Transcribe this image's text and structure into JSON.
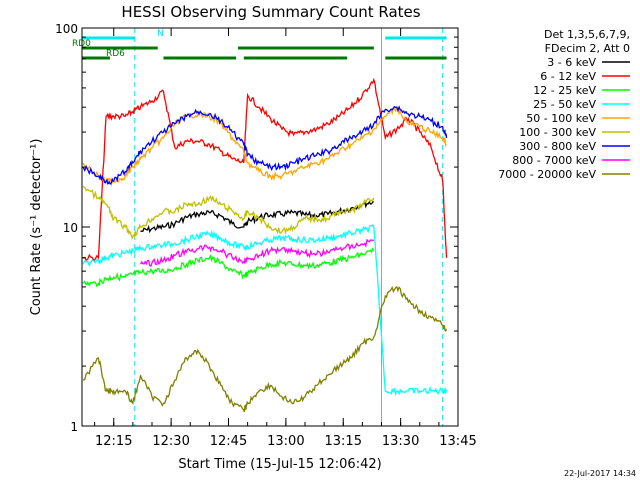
{
  "chart_data": {
    "type": "line",
    "title": "HESSI Observing Summary Count Rates",
    "xlabel": "Start Time (15-Jul-15 12:06:42)",
    "ylabel": "Count Rate (s⁻¹ detector⁻¹)",
    "y_scale": "log",
    "ylim": [
      1,
      100
    ],
    "xlim": [
      "12:06:42",
      "13:45"
    ],
    "x_ticks": [
      "12:15",
      "12:30",
      "12:45",
      "13:00",
      "13:15",
      "13:30",
      "13:45"
    ],
    "y_ticks": [
      "1",
      "10",
      "100"
    ],
    "footer_date": "22-Jul-2017 14:34",
    "legend": {
      "header1": "Det 1,3,5,6,7,9,",
      "header2": "FDecim 2, Att 0"
    },
    "flags": [
      {
        "label": "N",
        "color": "#00e5ee",
        "segments": [
          [
            "12:06:42",
            "12:20:30"
          ],
          [
            "13:26:00",
            "13:42:00"
          ]
        ]
      },
      {
        "label": "RD0",
        "color": "#007800",
        "segments": [
          [
            "12:06:42",
            "12:26:30"
          ],
          [
            "12:47:30",
            "13:23:00"
          ]
        ]
      },
      {
        "label": "RD6",
        "color": "#007800",
        "segments": [
          [
            "12:06:42",
            "12:14:00"
          ],
          [
            "12:28:00",
            "12:47:00"
          ],
          [
            "12:49:00",
            "13:16:00"
          ],
          [
            "13:26:00",
            "13:42:00"
          ]
        ]
      }
    ],
    "vlines": [
      {
        "t": "12:20:30",
        "style": "dashed",
        "color": "#00e5ee"
      },
      {
        "t": "13:41:00",
        "style": "dashed",
        "color": "#00e5ee"
      },
      {
        "t": "12:06:42",
        "style": "solid",
        "color": "#00e5ee"
      },
      {
        "t": "13:25:00",
        "style": "solid",
        "color": "#00e5ee"
      }
    ],
    "times": [
      "12:07",
      "12:11",
      "12:13",
      "12:15",
      "12:18",
      "12:20",
      "12:22",
      "12:25",
      "12:28",
      "12:31",
      "12:34",
      "12:37",
      "12:40",
      "12:43",
      "12:46",
      "12:49",
      "12:50",
      "12:53",
      "12:56",
      "12:59",
      "13:02",
      "13:05",
      "13:08",
      "13:11",
      "13:14",
      "13:17",
      "13:20",
      "13:23",
      "13:26",
      "13:29",
      "13:32",
      "13:35",
      "13:38",
      "13:41",
      "13:42"
    ],
    "series": [
      {
        "name": "3 - 6 keV",
        "color": "#000000",
        "values": [
          null,
          null,
          null,
          null,
          null,
          null,
          9.5,
          9.8,
          10.0,
          10.4,
          11.2,
          11.6,
          11.8,
          11.4,
          10.4,
          10.0,
          10.6,
          11.2,
          11.5,
          11.6,
          11.8,
          11.5,
          11.4,
          11.6,
          12.0,
          12.4,
          13.0,
          13.4,
          null,
          null,
          null,
          null,
          null,
          null,
          null
        ]
      },
      {
        "name": "6 - 12 keV",
        "color": "#ff0000",
        "values": [
          7.0,
          7.0,
          36,
          36,
          36,
          38,
          40,
          43,
          48,
          25,
          27,
          27,
          26,
          24,
          22,
          21,
          46,
          40,
          35,
          31,
          29,
          30,
          31,
          33,
          36,
          40,
          46,
          55,
          28,
          31,
          35,
          30,
          25,
          17,
          7
        ]
      },
      {
        "name": "12 - 25 keV",
        "color": "#00ff00",
        "values": [
          5.2,
          5.2,
          5.5,
          5.6,
          5.6,
          5.8,
          5.9,
          6.0,
          6.0,
          6.2,
          6.5,
          6.8,
          7.0,
          6.6,
          6.0,
          5.7,
          5.8,
          6.2,
          6.5,
          6.6,
          6.5,
          6.4,
          6.4,
          6.6,
          6.8,
          7.0,
          7.3,
          7.6,
          null,
          null,
          null,
          null,
          null,
          null,
          null
        ]
      },
      {
        "name": "25 - 50 keV",
        "color": "#00ffff",
        "values": [
          6.5,
          6.8,
          7.0,
          7.2,
          7.4,
          7.6,
          7.8,
          8.0,
          8.1,
          8.3,
          8.6,
          9.0,
          9.2,
          8.8,
          8.2,
          7.9,
          8.0,
          8.3,
          8.6,
          8.8,
          8.7,
          8.6,
          8.6,
          8.8,
          9.0,
          9.3,
          9.6,
          10.0,
          1.5,
          1.5,
          1.5,
          1.5,
          1.5,
          1.5,
          1.5
        ]
      },
      {
        "name": "50 - 100 keV",
        "color": "#ffa500",
        "values": [
          21,
          18,
          17,
          17,
          18,
          20,
          22,
          25,
          28,
          33,
          36,
          37,
          36,
          33,
          28,
          24,
          21,
          19,
          18,
          18,
          19,
          20,
          21,
          22,
          24,
          26,
          28,
          31,
          36,
          40,
          33,
          32,
          30,
          28,
          26
        ]
      },
      {
        "name": "100 - 300 keV",
        "color": "#c0c000",
        "values": [
          16,
          14,
          13,
          11,
          10,
          9,
          10,
          11,
          12,
          12,
          13,
          13,
          14,
          13,
          12,
          11,
          12,
          11,
          10,
          9.5,
          10,
          11,
          11,
          11,
          12,
          12,
          13,
          14,
          null,
          null,
          null,
          null,
          null,
          null,
          null
        ]
      },
      {
        "name": "300 - 800 keV",
        "color": "#0000ff",
        "values": [
          20,
          18,
          17,
          17,
          19,
          21,
          24,
          27,
          30,
          33,
          36,
          38,
          37,
          34,
          30,
          26,
          23,
          21,
          20,
          20,
          21,
          22,
          23,
          24,
          26,
          28,
          30,
          33,
          39,
          40,
          37,
          36,
          34,
          32,
          28
        ]
      },
      {
        "name": "800 - 7000 keV",
        "color": "#ff00ff",
        "values": [
          null,
          null,
          null,
          null,
          null,
          null,
          6.5,
          6.6,
          6.8,
          7.2,
          7.5,
          7.8,
          7.9,
          7.6,
          7.0,
          6.7,
          6.9,
          7.2,
          7.6,
          7.8,
          7.6,
          7.4,
          7.3,
          7.5,
          7.8,
          8.0,
          8.2,
          8.6,
          null,
          null,
          null,
          null,
          null,
          null,
          null
        ]
      },
      {
        "name": "7000 - 20000 keV",
        "color": "#808000",
        "values": [
          1.7,
          2.2,
          1.5,
          1.5,
          1.5,
          1.3,
          1.8,
          1.4,
          1.3,
          1.7,
          2.2,
          2.4,
          2.0,
          1.6,
          1.3,
          1.2,
          1.3,
          1.5,
          1.6,
          1.4,
          1.3,
          1.4,
          1.6,
          1.8,
          2.0,
          2.2,
          2.6,
          2.8,
          4.5,
          5.0,
          4.2,
          3.8,
          3.5,
          3.2,
          3.0
        ]
      }
    ]
  }
}
